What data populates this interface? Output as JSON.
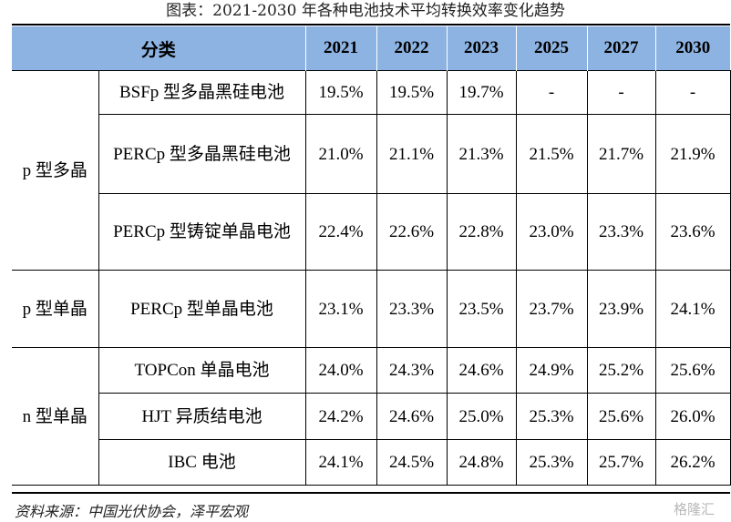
{
  "title": "图表：2021-2030 年各种电池技术平均转换效率变化趋势",
  "table": {
    "category_header": "分类",
    "years": [
      "2021",
      "2022",
      "2023",
      "2025",
      "2027",
      "2030"
    ],
    "rows": [
      {
        "group": "p 型多晶",
        "name": "BSFp 型多晶黑硅电池",
        "values": [
          "19.5%",
          "19.5%",
          "19.7%",
          "-",
          "-",
          "-"
        ]
      },
      {
        "group": "p 型多晶",
        "name": "PERCp 型多晶黑硅电池",
        "values": [
          "21.0%",
          "21.1%",
          "21.3%",
          "21.5%",
          "21.7%",
          "21.9%"
        ]
      },
      {
        "group": "p 型多晶",
        "name": "PERCp 型铸锭单晶电池",
        "values": [
          "22.4%",
          "22.6%",
          "22.8%",
          "23.0%",
          "23.3%",
          "23.6%"
        ]
      },
      {
        "group": "p 型单晶",
        "name": "PERCp 型单晶电池",
        "values": [
          "23.1%",
          "23.3%",
          "23.5%",
          "23.7%",
          "23.9%",
          "24.1%"
        ]
      },
      {
        "group": "n 型单晶",
        "name": "TOPCon 单晶电池",
        "values": [
          "24.0%",
          "24.3%",
          "24.6%",
          "24.9%",
          "25.2%",
          "25.6%"
        ]
      },
      {
        "group": "n 型单晶",
        "name": "HJT 异质结电池",
        "values": [
          "24.2%",
          "24.6%",
          "25.0%",
          "25.3%",
          "25.6%",
          "26.0%"
        ]
      },
      {
        "group": "n 型单晶",
        "name": "IBC 电池",
        "values": [
          "24.1%",
          "24.5%",
          "24.8%",
          "25.3%",
          "25.7%",
          "26.2%"
        ]
      }
    ]
  },
  "source": "资料来源：中国光伏协会，泽平宏观",
  "watermark": "格隆汇"
}
